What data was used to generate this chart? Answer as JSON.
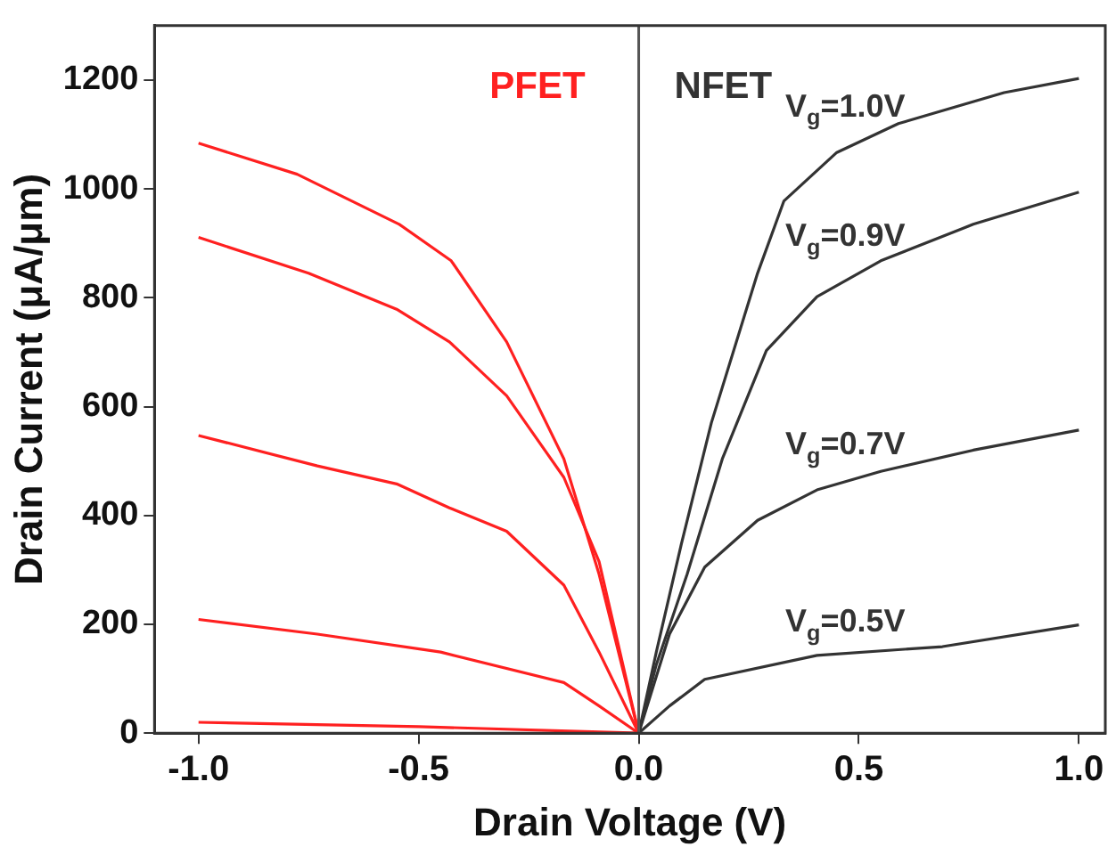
{
  "chart_data": {
    "type": "line",
    "xlabel": "Drain Voltage (V)",
    "ylabel": "Drain Current (μA/μm)",
    "xlim": [
      -1.1,
      1.06
    ],
    "xticks": [
      {
        "value": -1,
        "label": "-1.0"
      },
      {
        "value": -0.5,
        "label": "-0.5"
      },
      {
        "value": 0,
        "label": "0.0"
      },
      {
        "value": 0.5,
        "label": "0.5"
      },
      {
        "value": 1,
        "label": "1.0"
      }
    ],
    "ylim": [
      0,
      1300
    ],
    "yticks": [
      0,
      200,
      400,
      600,
      800,
      1000,
      1200
    ],
    "grid": false,
    "legend": false,
    "marker": "none",
    "line_style": "solid",
    "ref_lines": [
      {
        "axis": "x",
        "value": 0,
        "color": "#555555"
      }
    ],
    "annotations": [
      "PFET",
      "NFET"
    ],
    "series": [
      {
        "color": "#ff2020",
        "x": [
          -1,
          -0.776,
          -0.544,
          -0.426,
          -0.3,
          -0.17,
          -0.09,
          0
        ],
        "values": [
          1084,
          1027,
          935,
          868,
          719,
          504,
          292,
          0
        ]
      },
      {
        "color": "#ff2020",
        "x": [
          -1,
          -0.75,
          -0.55,
          -0.43,
          -0.3,
          -0.17,
          -0.09,
          0
        ],
        "values": [
          911,
          845,
          779,
          719,
          620,
          470,
          315,
          0
        ]
      },
      {
        "color": "#ff2020",
        "x": [
          -1,
          -0.73,
          -0.55,
          -0.43,
          -0.3,
          -0.17,
          -0.09,
          0
        ],
        "values": [
          547,
          491,
          458,
          414,
          371,
          272,
          149,
          0
        ]
      },
      {
        "color": "#ff2020",
        "x": [
          -1,
          -0.73,
          -0.45,
          -0.17,
          -0.09,
          0
        ],
        "values": [
          209,
          182,
          149,
          93,
          50,
          0
        ]
      },
      {
        "color": "#ff2020",
        "x": [
          -1,
          -0.5,
          0
        ],
        "values": [
          20,
          12,
          0
        ]
      },
      {
        "name": "V$_{g}$=1.0V",
        "color": "#333333",
        "x": [
          0,
          0.04,
          0.097,
          0.165,
          0.27,
          0.33,
          0.45,
          0.59,
          0.83,
          1.0
        ],
        "values": [
          0,
          149,
          348,
          570,
          845,
          978,
          1067,
          1120,
          1177,
          1203
        ]
      },
      {
        "name": "V$_{g}$=0.9V",
        "color": "#333333",
        "x": [
          0,
          0.04,
          0.11,
          0.19,
          0.29,
          0.405,
          0.55,
          0.76,
          1.0
        ],
        "values": [
          0,
          126,
          292,
          504,
          703,
          802,
          868,
          935,
          994
        ]
      },
      {
        "name": "V$_{g}$=0.7V",
        "color": "#333333",
        "x": [
          0,
          0.07,
          0.15,
          0.27,
          0.405,
          0.55,
          0.76,
          1.0
        ],
        "values": [
          0,
          182,
          305,
          391,
          447,
          481,
          520,
          557
        ]
      },
      {
        "name": "V$_{g}$=0.5V",
        "color": "#333333",
        "x": [
          0,
          0.07,
          0.15,
          0.405,
          0.69,
          1.0
        ],
        "values": [
          0,
          50,
          99,
          143,
          159,
          199
        ]
      }
    ]
  }
}
